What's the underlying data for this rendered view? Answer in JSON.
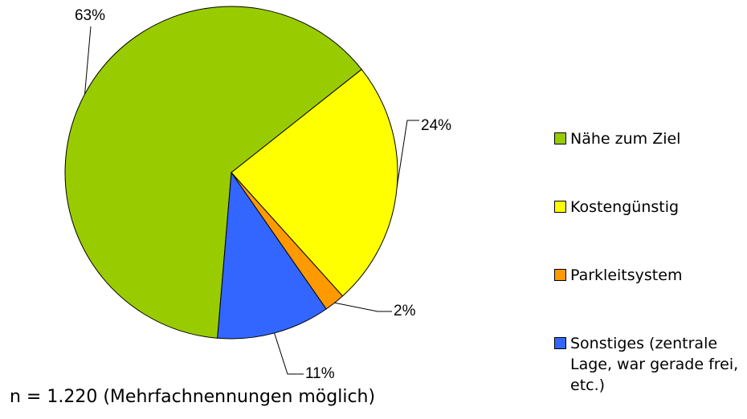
{
  "chart_data": {
    "type": "pie",
    "categories": [
      "Nähe zum Ziel",
      "Kostengünstig",
      "Parkleitsystem",
      "Sonstiges (zentrale Lage, war gerade frei, etc.)"
    ],
    "values": [
      63,
      24,
      2,
      11
    ],
    "value_labels": [
      "63%",
      "24%",
      "2%",
      "11%"
    ],
    "colors": [
      "#99cc00",
      "#ffff00",
      "#ff9900",
      "#3366ff"
    ],
    "legend": "right",
    "note": "n = 1.220 (Mehrfachnennungen möglich)"
  }
}
